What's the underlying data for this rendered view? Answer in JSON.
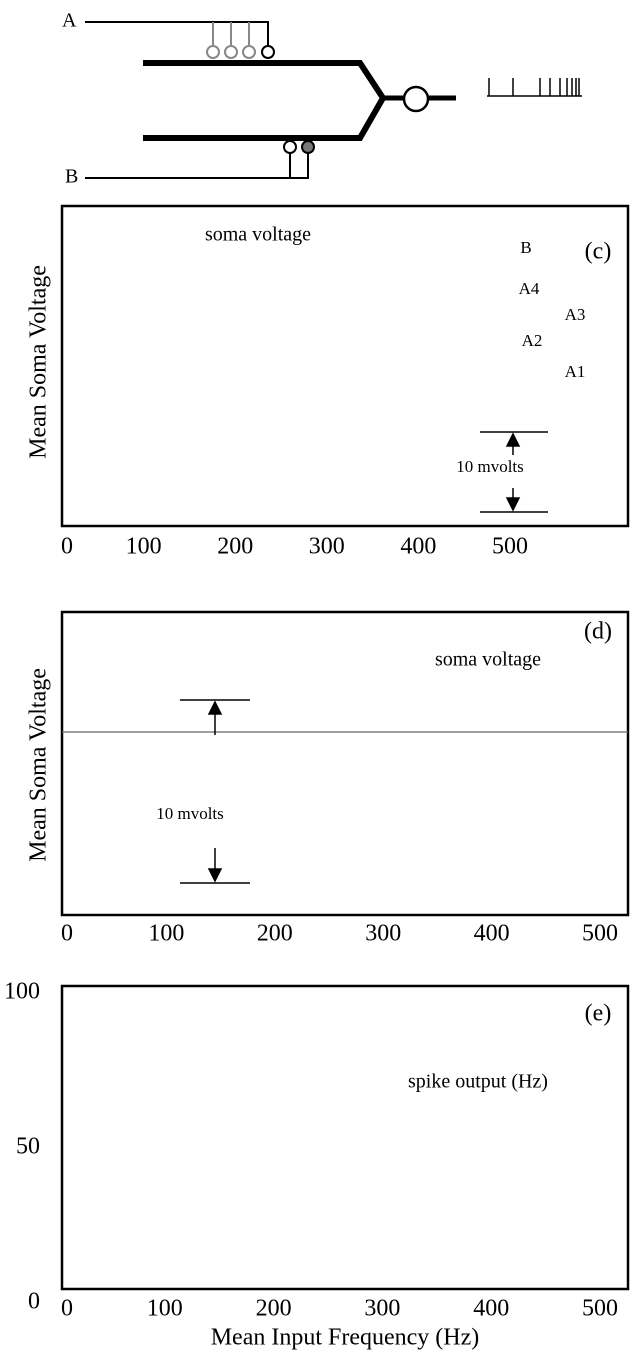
{
  "diagram": {
    "inputs": [
      "A",
      "B"
    ]
  },
  "panels": [
    {
      "label": "(c)",
      "y_axis_label": "Mean Soma Voltage",
      "annotation": "soma voltage",
      "scale_bar": "10 mvolts",
      "trace_labels": [
        "B",
        "A4",
        "A3",
        "A2",
        "A1"
      ],
      "xticks": [
        0,
        100,
        200,
        300,
        400,
        500
      ]
    },
    {
      "label": "(d)",
      "y_axis_label": "Mean Soma Voltage",
      "annotation": "soma voltage",
      "scale_bar": "10 mvolts",
      "xticks": [
        0,
        100,
        200,
        300,
        400,
        500
      ]
    },
    {
      "label": "(e)",
      "annotation": "spike output (Hz)",
      "x_axis_label": "Mean Input Frequency (Hz)",
      "xticks": [
        0,
        100,
        200,
        300,
        400,
        500
      ],
      "yticks": [
        0,
        50,
        100
      ]
    }
  ]
}
